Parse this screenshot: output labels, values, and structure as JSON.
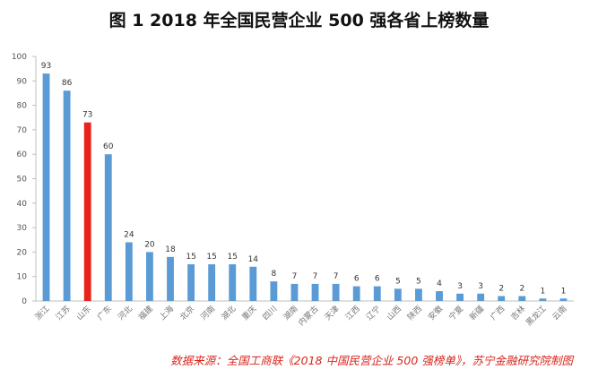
{
  "chart_data": {
    "type": "bar",
    "title": "图 1  2018 年全国民营企业 500 强各省上榜数量",
    "categories": [
      "浙江",
      "江苏",
      "山东",
      "广东",
      "河北",
      "福建",
      "上海",
      "北京",
      "河南",
      "湖北",
      "重庆",
      "四川",
      "湖南",
      "内蒙古",
      "天津",
      "江西",
      "辽宁",
      "山西",
      "陕西",
      "安徽",
      "宁夏",
      "新疆",
      "广西",
      "吉林",
      "黑龙江",
      "云南"
    ],
    "values": [
      93,
      86,
      73,
      60,
      24,
      20,
      18,
      15,
      15,
      15,
      14,
      8,
      7,
      7,
      7,
      6,
      6,
      5,
      5,
      4,
      3,
      3,
      2,
      2,
      1,
      1
    ],
    "highlight_category": "山东",
    "ylim": [
      0,
      100
    ],
    "yticks": [
      0,
      10,
      20,
      30,
      40,
      50,
      60,
      70,
      80,
      90,
      100
    ],
    "grid": false,
    "colors": {
      "bar": "#5b9bd5",
      "highlight": "#e8231c",
      "axis": "#bfbfbf"
    }
  },
  "source_note": "数据来源：全国工商联《2018 中国民营企业 500 强榜单》，苏宁金融研究院制图"
}
